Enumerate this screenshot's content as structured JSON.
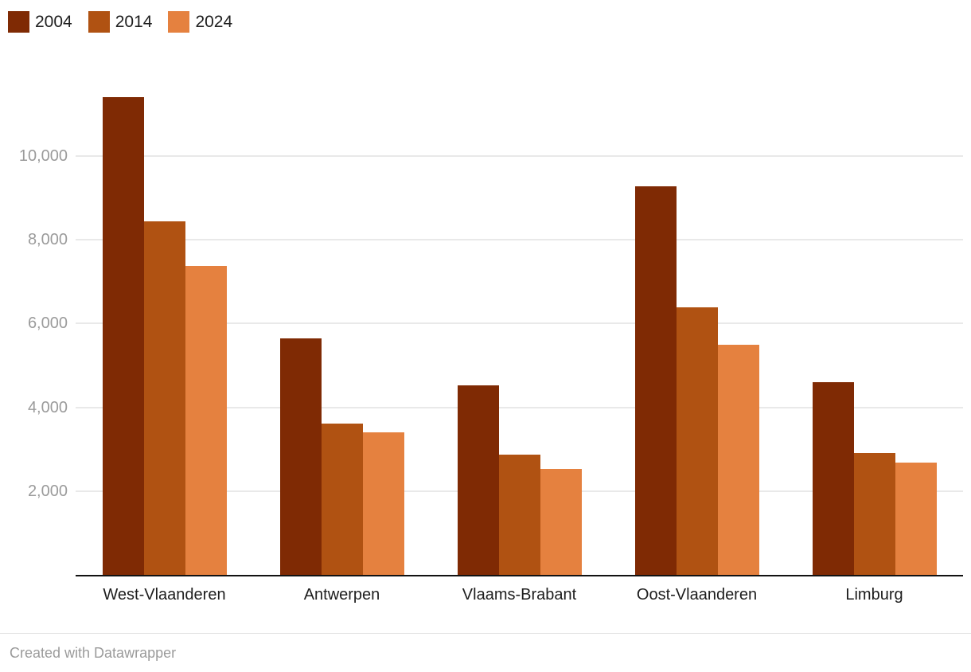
{
  "legend": {
    "items": [
      {
        "label": "2004",
        "color": "#7f2a04"
      },
      {
        "label": "2014",
        "color": "#b05212"
      },
      {
        "label": "2024",
        "color": "#e5813f"
      }
    ]
  },
  "footer": {
    "credit": "Created with Datawrapper"
  },
  "colors": {
    "series_2004": "#7f2a04",
    "series_2014": "#b05212",
    "series_2024": "#e5813f",
    "gridline": "#e9e9e9",
    "axis": "#121212",
    "tick_text": "#9b9b9b",
    "category_text": "#1d1d1d"
  },
  "chart_data": {
    "type": "bar",
    "title": "",
    "xlabel": "",
    "ylabel": "",
    "categories": [
      "West-Vlaanderen",
      "Antwerpen",
      "Vlaams-Brabant",
      "Oost-Vlaanderen",
      "Limburg"
    ],
    "series": [
      {
        "name": "2004",
        "color": "#7f2a04",
        "values": [
          11400,
          5650,
          4530,
          9270,
          4610
        ]
      },
      {
        "name": "2014",
        "color": "#b05212",
        "values": [
          8450,
          3620,
          2880,
          6380,
          2900
        ]
      },
      {
        "name": "2024",
        "color": "#e5813f",
        "values": [
          7370,
          3410,
          2520,
          5500,
          2690
        ]
      }
    ],
    "ylim": [
      0,
      11900
    ],
    "yticks": [
      2000,
      4000,
      6000,
      8000,
      10000
    ],
    "ytick_labels": [
      "2,000",
      "4,000",
      "6,000",
      "8,000",
      "10,000"
    ],
    "grid": true,
    "legend_position": "top-left",
    "source_note": "Created with Datawrapper"
  }
}
